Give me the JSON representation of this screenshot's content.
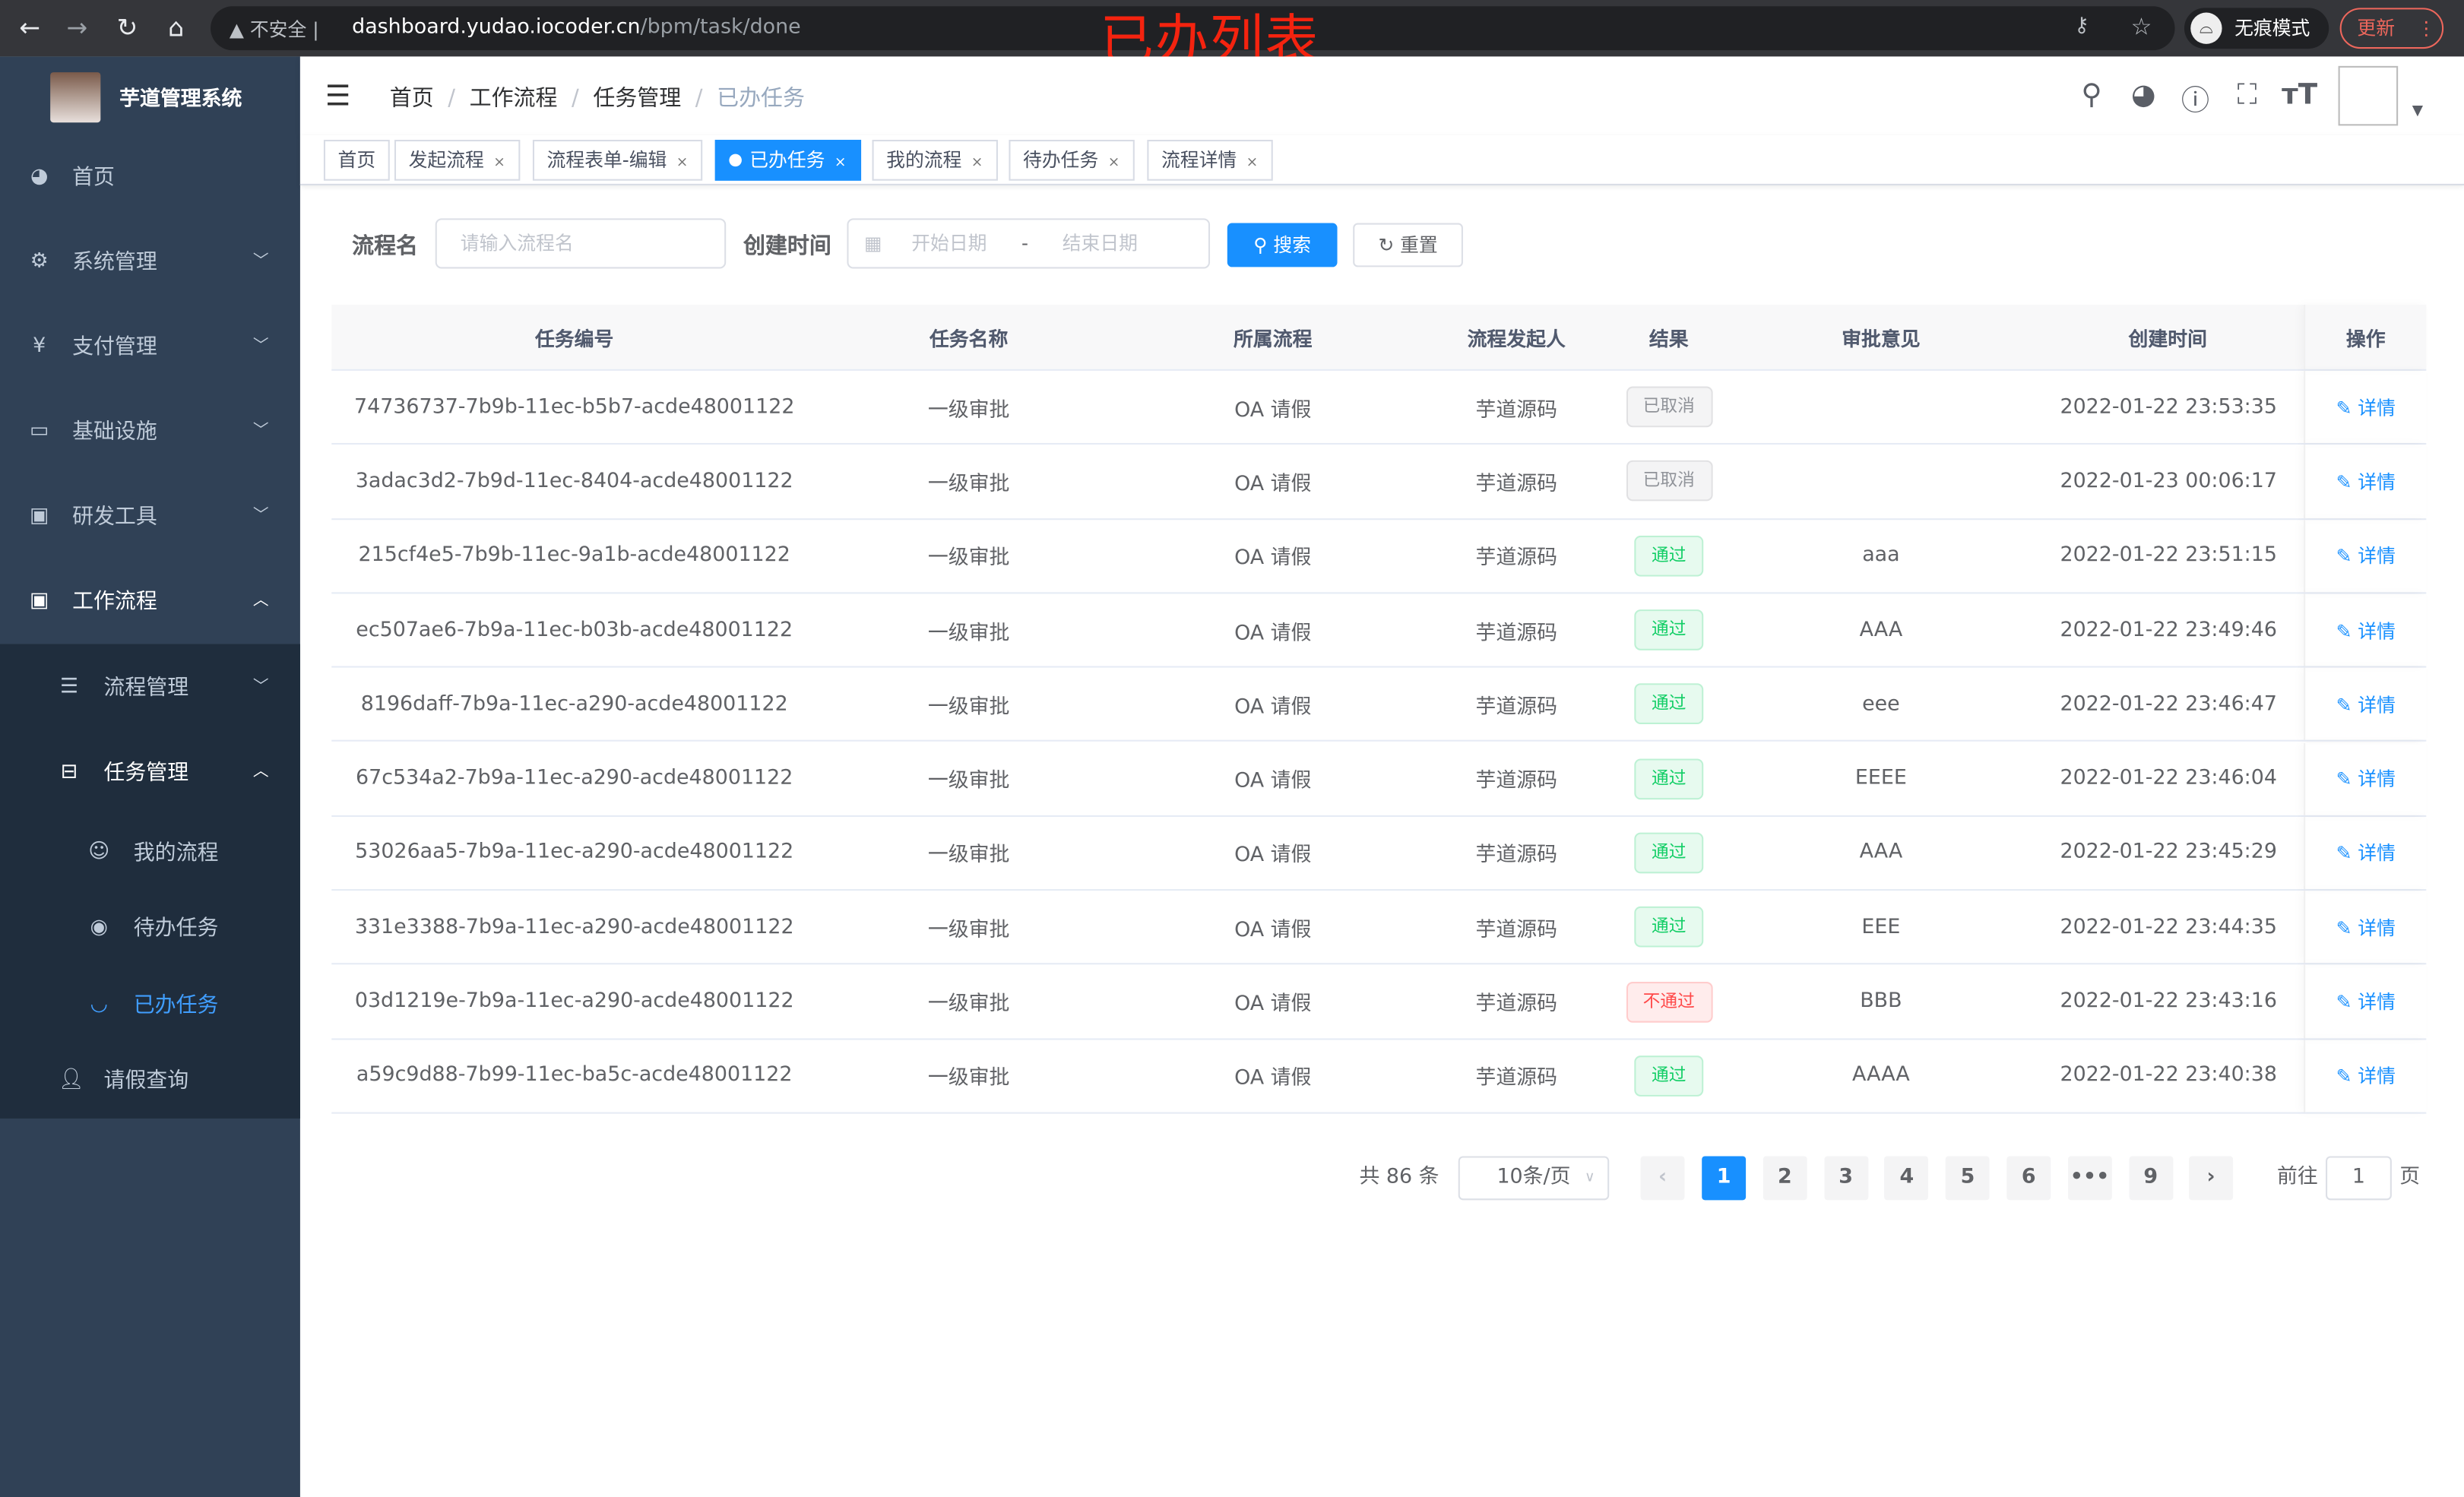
{
  "browser": {
    "security": "不安全",
    "url_host": "dashboard.yudao.iocoder.cn",
    "url_path": "/bpm/task/done",
    "incognito": "无痕模式",
    "update": "更新"
  },
  "annotation": "已办列表",
  "sidebar": {
    "title": "芋道管理系统",
    "items": [
      {
        "label": "首页",
        "icon": "dashboard-icon"
      },
      {
        "label": "系统管理",
        "icon": "gear-icon"
      },
      {
        "label": "支付管理",
        "icon": "yen-icon"
      },
      {
        "label": "基础设施",
        "icon": "monitor-icon"
      },
      {
        "label": "研发工具",
        "icon": "toolbox-icon"
      },
      {
        "label": "工作流程",
        "icon": "toolbox-icon"
      }
    ],
    "sub": [
      {
        "label": "流程管理"
      },
      {
        "label": "任务管理"
      }
    ],
    "sub2": [
      {
        "label": "我的流程"
      },
      {
        "label": "待办任务"
      },
      {
        "label": "已办任务"
      }
    ],
    "leave": "请假查询"
  },
  "breadcrumb": [
    "首页",
    "工作流程",
    "任务管理",
    "已办任务"
  ],
  "tags": [
    "首页",
    "发起流程",
    "流程表单-编辑",
    "已办任务",
    "我的流程",
    "待办任务",
    "流程详情"
  ],
  "filters": {
    "name_label": "流程名",
    "name_placeholder": "请输入流程名",
    "time_label": "创建时间",
    "start_placeholder": "开始日期",
    "sep": "-",
    "end_placeholder": "结束日期",
    "search": "搜索",
    "reset": "重置"
  },
  "table": {
    "columns": [
      "任务编号",
      "任务名称",
      "所属流程",
      "流程发起人",
      "结果",
      "审批意见",
      "创建时间",
      "操作"
    ],
    "action": "详情",
    "rows": [
      [
        "74736737-7b9b-11ec-b5b7-acde48001122",
        "一级审批",
        "OA 请假",
        "芋道源码",
        "已取消",
        "",
        "2022-01-22 23:53:35"
      ],
      [
        "3adac3d2-7b9d-11ec-8404-acde48001122",
        "一级审批",
        "OA 请假",
        "芋道源码",
        "已取消",
        "",
        "2022-01-23 00:06:17"
      ],
      [
        "215cf4e5-7b9b-11ec-9a1b-acde48001122",
        "一级审批",
        "OA 请假",
        "芋道源码",
        "通过",
        "aaa",
        "2022-01-22 23:51:15"
      ],
      [
        "ec507ae6-7b9a-11ec-b03b-acde48001122",
        "一级审批",
        "OA 请假",
        "芋道源码",
        "通过",
        "AAA",
        "2022-01-22 23:49:46"
      ],
      [
        "8196daff-7b9a-11ec-a290-acde48001122",
        "一级审批",
        "OA 请假",
        "芋道源码",
        "通过",
        "eee",
        "2022-01-22 23:46:47"
      ],
      [
        "67c534a2-7b9a-11ec-a290-acde48001122",
        "一级审批",
        "OA 请假",
        "芋道源码",
        "通过",
        "EEEE",
        "2022-01-22 23:46:04"
      ],
      [
        "53026aa5-7b9a-11ec-a290-acde48001122",
        "一级审批",
        "OA 请假",
        "芋道源码",
        "通过",
        "AAA",
        "2022-01-22 23:45:29"
      ],
      [
        "331e3388-7b9a-11ec-a290-acde48001122",
        "一级审批",
        "OA 请假",
        "芋道源码",
        "通过",
        "EEE",
        "2022-01-22 23:44:35"
      ],
      [
        "03d1219e-7b9a-11ec-a290-acde48001122",
        "一级审批",
        "OA 请假",
        "芋道源码",
        "不通过",
        "BBB",
        "2022-01-22 23:43:16"
      ],
      [
        "a59c9d88-7b99-11ec-ba5c-acde48001122",
        "一级审批",
        "OA 请假",
        "芋道源码",
        "通过",
        "AAAA",
        "2022-01-22 23:40:38"
      ]
    ]
  },
  "result_colors": {
    "已取消": "#909399",
    "通过": "#13ce66",
    "不通过": "#ff4949"
  },
  "pagination": {
    "total": "共 86 条",
    "page_size": "10条/页",
    "pages": [
      "1",
      "2",
      "3",
      "4",
      "5",
      "6",
      "•••",
      "9"
    ],
    "current": "1",
    "goto": "前往",
    "goto_value": "1",
    "page_unit": "页"
  },
  "accent": "#1890ff"
}
